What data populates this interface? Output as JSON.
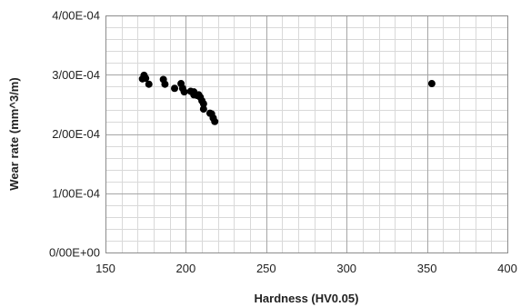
{
  "chart_data": {
    "type": "scatter",
    "xlabel": "Hardness (HV0.05)",
    "ylabel": "Wear rate (mm^3/m)",
    "xlim": [
      150,
      400
    ],
    "ylim": [
      0,
      0.0004
    ],
    "x_ticks": [
      150,
      200,
      250,
      300,
      350,
      400
    ],
    "x_tick_labels": [
      "150",
      "200",
      "250",
      "300",
      "350",
      "400"
    ],
    "y_ticks": [
      0,
      0.0001,
      0.0002,
      0.0003,
      0.0004
    ],
    "y_tick_labels": [
      "0/00E+00",
      "1/00E-04",
      "2/00E-04",
      "3/00E-04",
      "4/00E-04"
    ],
    "x_minor_step": 10,
    "y_minor_step": 2e-05,
    "grid": true,
    "marker_color": "#000000",
    "series": [
      {
        "points": [
          {
            "x": 173,
            "y": 0.000293
          },
          {
            "x": 174,
            "y": 0.000299
          },
          {
            "x": 175,
            "y": 0.000294
          },
          {
            "x": 177,
            "y": 0.000284
          },
          {
            "x": 186,
            "y": 0.000292
          },
          {
            "x": 187,
            "y": 0.000284
          },
          {
            "x": 193,
            "y": 0.000277
          },
          {
            "x": 197,
            "y": 0.000285
          },
          {
            "x": 198,
            "y": 0.000277
          },
          {
            "x": 199,
            "y": 0.000271
          },
          {
            "x": 203,
            "y": 0.000272
          },
          {
            "x": 205,
            "y": 0.000271
          },
          {
            "x": 205,
            "y": 0.000266
          },
          {
            "x": 207,
            "y": 0.000265
          },
          {
            "x": 208,
            "y": 0.000266
          },
          {
            "x": 209,
            "y": 0.000262
          },
          {
            "x": 210,
            "y": 0.000256
          },
          {
            "x": 211,
            "y": 0.000251
          },
          {
            "x": 211,
            "y": 0.000242
          },
          {
            "x": 215,
            "y": 0.000235
          },
          {
            "x": 216,
            "y": 0.000234
          },
          {
            "x": 217,
            "y": 0.000227
          },
          {
            "x": 218,
            "y": 0.000221
          },
          {
            "x": 353,
            "y": 0.000285
          }
        ]
      }
    ]
  }
}
